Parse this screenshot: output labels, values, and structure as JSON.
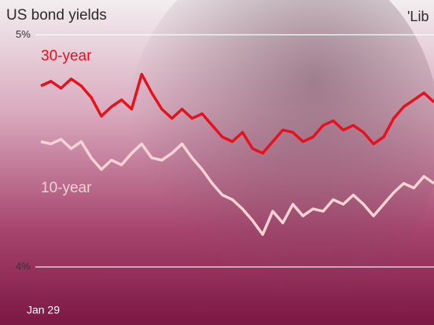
{
  "chart_data": {
    "type": "line",
    "title": "US bond yields",
    "annotations": [
      "'Lib"
    ],
    "categories": [
      "Jan 29",
      null,
      null,
      null,
      null,
      null,
      null,
      null,
      null,
      null,
      null,
      null,
      null,
      null,
      null,
      null,
      null,
      null,
      null,
      null,
      null,
      null,
      null,
      null,
      null,
      null,
      null,
      null,
      null,
      null,
      null,
      null,
      null,
      null,
      null,
      null,
      null,
      null,
      null,
      null
    ],
    "series": [
      {
        "name": "30-year",
        "color": "#e8101c",
        "values": [
          4.78,
          4.8,
          4.77,
          4.81,
          4.78,
          4.73,
          4.65,
          4.69,
          4.72,
          4.68,
          4.83,
          4.75,
          4.68,
          4.64,
          4.68,
          4.64,
          4.66,
          4.61,
          4.56,
          4.54,
          4.58,
          4.51,
          4.49,
          4.54,
          4.59,
          4.58,
          4.54,
          4.56,
          4.61,
          4.63,
          4.59,
          4.61,
          4.58,
          4.53,
          4.56,
          4.64,
          4.69,
          4.72,
          4.75,
          4.71
        ]
      },
      {
        "name": "10-year",
        "color": "#f7d3d3",
        "values": [
          4.54,
          4.53,
          4.55,
          4.51,
          4.54,
          4.47,
          4.42,
          4.46,
          4.44,
          4.49,
          4.53,
          4.47,
          4.46,
          4.49,
          4.53,
          4.47,
          4.42,
          4.36,
          4.31,
          4.29,
          4.25,
          4.2,
          4.14,
          4.24,
          4.19,
          4.27,
          4.22,
          4.25,
          4.24,
          4.29,
          4.27,
          4.31,
          4.27,
          4.22,
          4.27,
          4.32,
          4.36,
          4.34,
          4.39,
          4.36
        ]
      }
    ],
    "ylim": [
      3.75,
      5.15
    ],
    "yticks": [
      {
        "value": 4,
        "label": "4%"
      },
      {
        "value": 5,
        "label": "5%"
      }
    ],
    "grid": true
  }
}
